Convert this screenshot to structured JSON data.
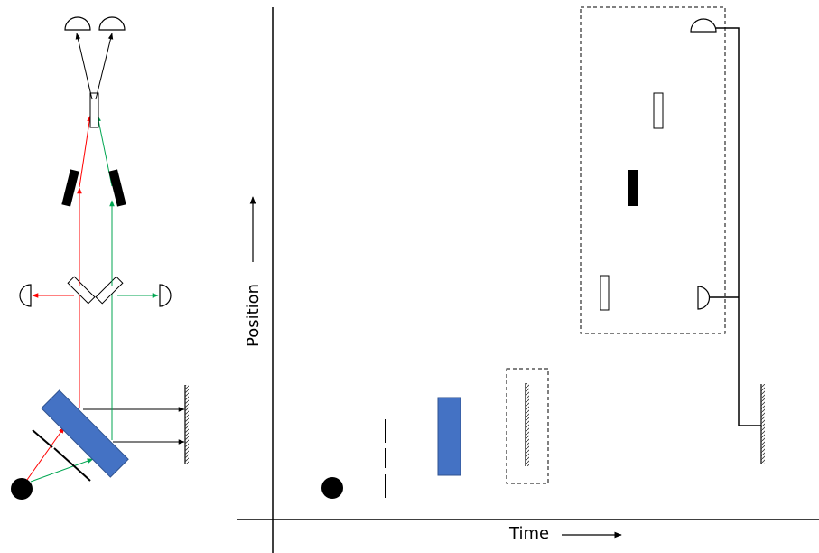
{
  "colors": {
    "ink": "#000000",
    "red_beam": "#ff0000",
    "green_beam": "#00a651",
    "crystal_fill": "#4472c4",
    "crystal_stroke": "#2f528f",
    "frame": "#404040"
  },
  "axes": {
    "x_label": "Time",
    "y_label": "Position"
  }
}
